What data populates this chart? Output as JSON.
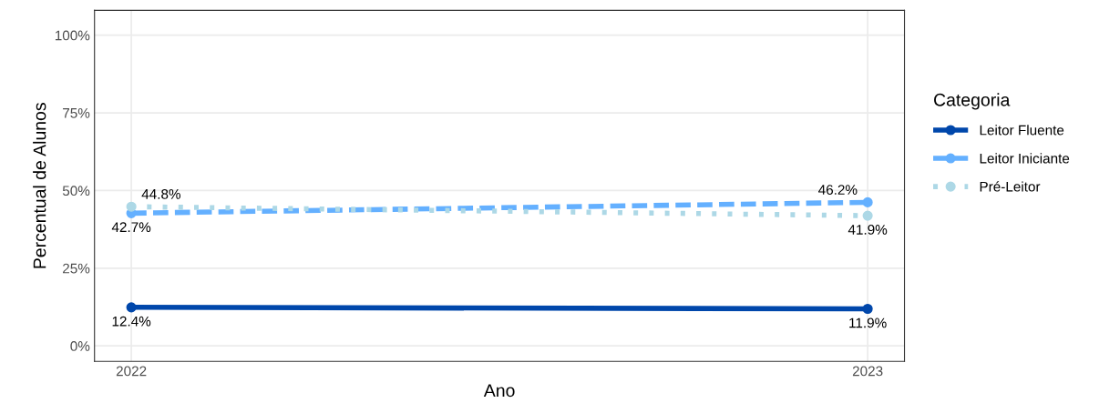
{
  "chart_data": {
    "type": "line",
    "xlabel": "Ano",
    "ylabel": "Percentual de Alunos",
    "legend_title": "Categoria",
    "legend": "right",
    "grid": true,
    "marker": "circle",
    "x": [
      2022,
      2023
    ],
    "xlim": [
      2021.95,
      2023.05
    ],
    "xticks": [
      2022,
      2023
    ],
    "ylim": [
      -5,
      108
    ],
    "yticks": [
      {
        "value": 0,
        "label": "0%"
      },
      {
        "value": 25,
        "label": "25%"
      },
      {
        "value": 50,
        "label": "50%"
      },
      {
        "value": 75,
        "label": "75%"
      },
      {
        "value": 100,
        "label": "100%"
      }
    ],
    "series": [
      {
        "name": "Leitor Fluente",
        "color": "#0047ab",
        "line_style": "solid",
        "values": [
          12.4,
          11.9
        ],
        "value_labels": [
          "12.4%",
          "11.9%"
        ]
      },
      {
        "name": "Leitor Iniciante",
        "color": "#64b0ff",
        "line_style": "dashed",
        "values": [
          42.7,
          46.2
        ],
        "value_labels": [
          "42.7%",
          "46.2%"
        ]
      },
      {
        "name": "Pré-Leitor",
        "color": "#add8e6",
        "line_style": "dotted",
        "values": [
          44.8,
          41.9
        ],
        "value_labels": [
          "44.8%",
          "41.9%"
        ]
      }
    ]
  }
}
